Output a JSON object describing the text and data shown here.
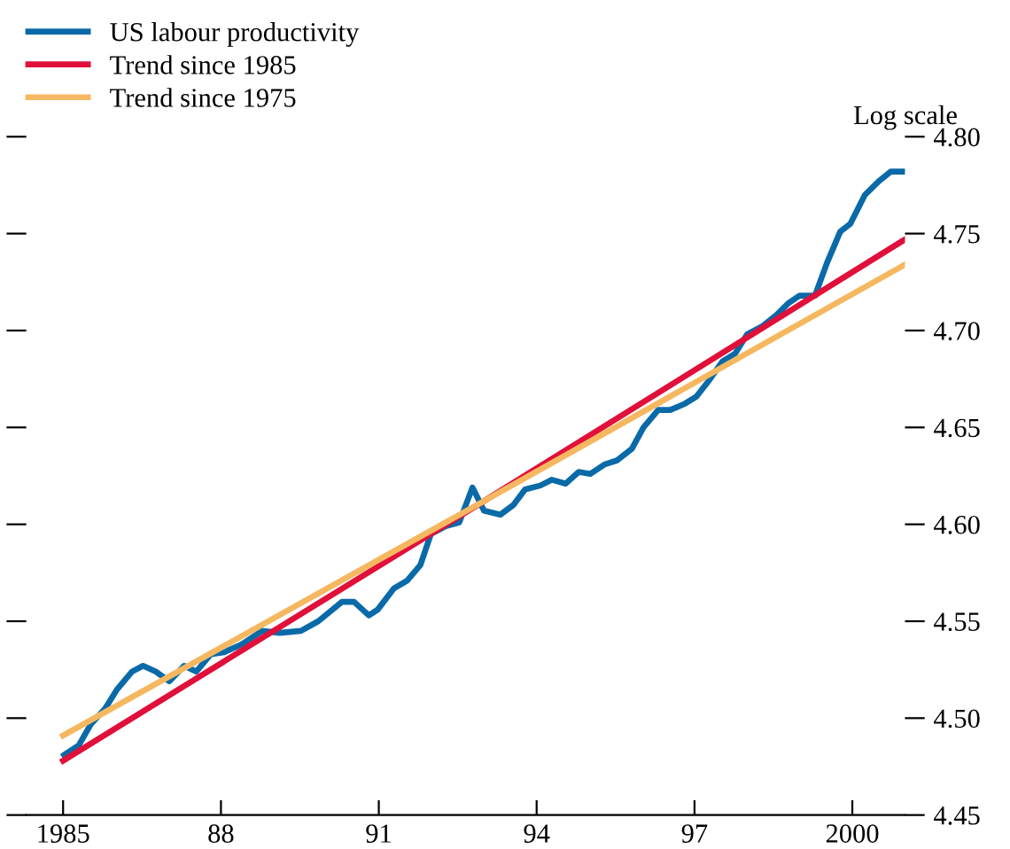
{
  "chart_data": {
    "type": "line",
    "ylabel": "Log scale",
    "legend": "top left",
    "grid": false,
    "xlim": [
      1984.3,
      2001.0
    ],
    "ylim": [
      4.45,
      4.8
    ],
    "xticks": [
      1985,
      {
        "value": 1988,
        "label": "88"
      },
      {
        "value": 1991,
        "label": "91"
      },
      {
        "value": 1994,
        "label": "94"
      },
      {
        "value": 1997,
        "label": "97"
      },
      2000
    ],
    "yticks": [
      {
        "value": 4.45,
        "label": "4.45"
      },
      {
        "value": 4.5,
        "label": "4.50"
      },
      {
        "value": 4.55,
        "label": "4.55"
      },
      {
        "value": 4.6,
        "label": "4.60"
      },
      {
        "value": 4.65,
        "label": "4.65"
      },
      {
        "value": 4.7,
        "label": "4.70"
      },
      {
        "value": 4.75,
        "label": "4.75"
      },
      {
        "value": 4.8,
        "label": "4.80"
      }
    ],
    "series": [
      {
        "name": "US labour productivity",
        "color": "#0a6aa8",
        "x": [
          1985.02,
          1985.3,
          1985.53,
          1985.8,
          1986.03,
          1986.31,
          1986.52,
          1986.76,
          1987.02,
          1987.3,
          1987.53,
          1987.81,
          1988.06,
          1988.39,
          1988.78,
          1989.12,
          1989.52,
          1989.85,
          1990.3,
          1990.53,
          1990.81,
          1990.98,
          1991.29,
          1991.54,
          1991.79,
          1991.99,
          1992.27,
          1992.53,
          1992.78,
          1993.0,
          1993.31,
          1993.56,
          1993.78,
          1994.07,
          1994.29,
          1994.55,
          1994.8,
          1995.02,
          1995.3,
          1995.53,
          1995.81,
          1996.03,
          1996.31,
          1996.54,
          1996.8,
          1997.04,
          1997.27,
          1997.53,
          1997.77,
          1998.0,
          1998.28,
          1998.56,
          1998.78,
          1999.0,
          1999.29,
          1999.52,
          1999.77,
          1999.96,
          2000.24,
          2000.5,
          2000.73,
          2000.98
        ],
        "values": [
          4.481,
          4.486,
          4.497,
          4.505,
          4.515,
          4.524,
          4.527,
          4.524,
          4.519,
          4.527,
          4.524,
          4.533,
          4.534,
          4.538,
          4.545,
          4.544,
          4.545,
          4.55,
          4.56,
          4.56,
          4.553,
          4.556,
          4.567,
          4.571,
          4.579,
          4.595,
          4.599,
          4.601,
          4.619,
          4.607,
          4.605,
          4.61,
          4.618,
          4.62,
          4.623,
          4.621,
          4.627,
          4.626,
          4.631,
          4.633,
          4.639,
          4.65,
          4.659,
          4.659,
          4.662,
          4.666,
          4.674,
          4.684,
          4.688,
          4.698,
          4.702,
          4.708,
          4.714,
          4.718,
          4.718,
          4.735,
          4.751,
          4.755,
          4.77,
          4.777,
          4.782,
          4.782
        ]
      },
      {
        "name": "Trend since 1985",
        "color": "#e0103a",
        "x": [
          1985.0,
          1993.0,
          2001.0
        ],
        "values": [
          4.478,
          4.612,
          4.747
        ]
      },
      {
        "name": "Trend since 1975",
        "color": "#f5b860",
        "x": [
          1985.0,
          1993.0,
          2001.0
        ],
        "values": [
          4.491,
          4.612,
          4.734
        ]
      }
    ]
  }
}
